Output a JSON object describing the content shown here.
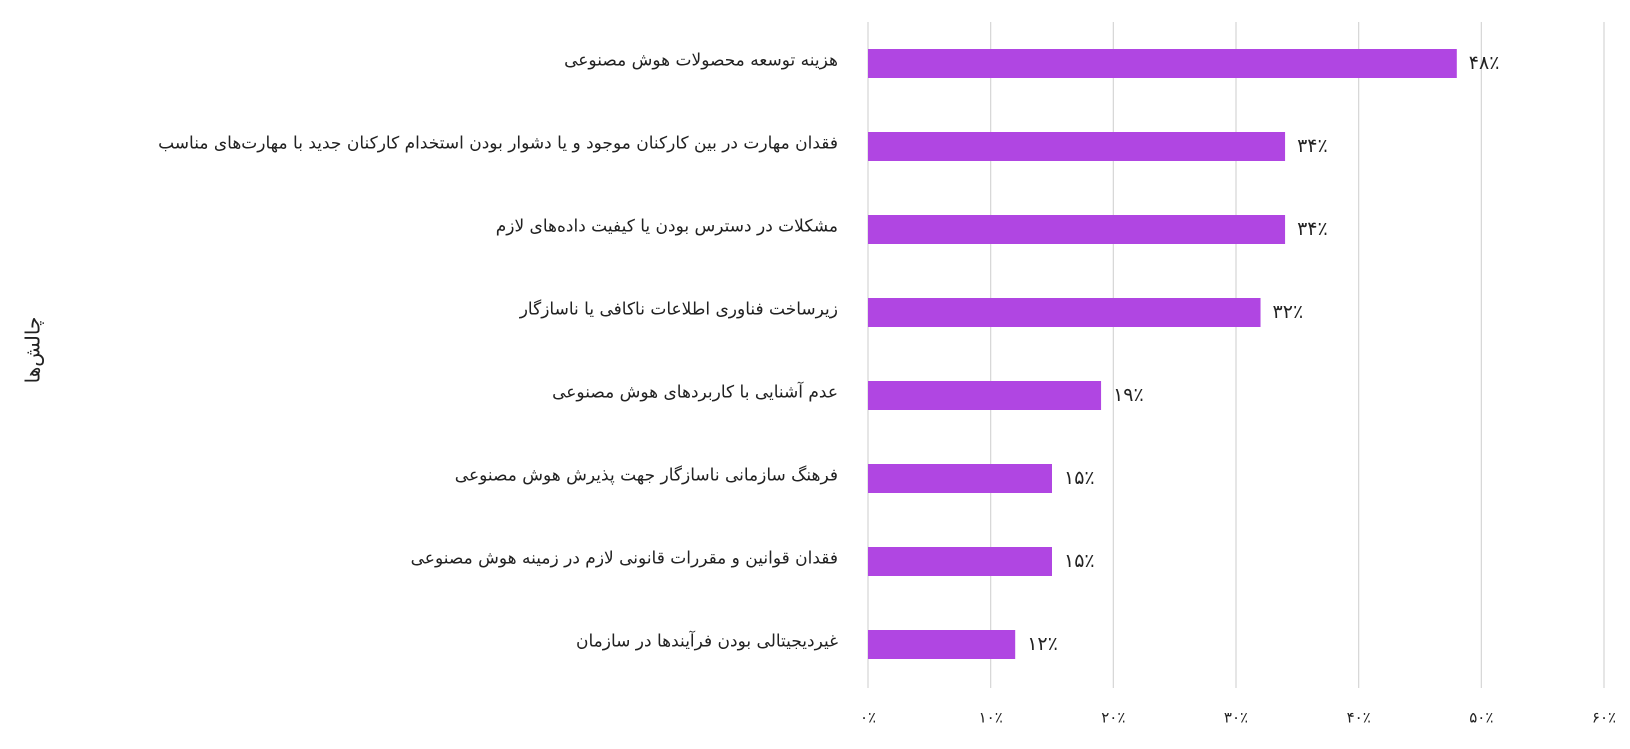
{
  "chart_data": {
    "type": "barh",
    "y_label": "چالش‌ها",
    "categories": [
      "هزینه توسعه محصولات هوش مصنوعی",
      "فقدان مهارت در بین کارکنان موجود و یا دشوار بودن استخدام کارکنان جدید با مهارت‌های مناسب",
      "مشکلات در دسترس بودن یا کیفیت داده‌های لازم",
      "زیرساخت فناوری اطلاعات ناکافی یا ناسازگار",
      "عدم آشنایی با کاربردهای هوش مصنوعی",
      "فرهنگ سازمانی ناسازگار جهت پذیرش هوش مصنوعی",
      "فقدان قوانین و مقررات قانونی لازم در زمینه هوش مصنوعی",
      "غیردیجیتالی بودن فرآیندها در سازمان"
    ],
    "values": [
      48,
      34,
      34,
      32,
      19,
      15,
      15,
      12
    ],
    "value_labels": [
      "۴۸٪",
      "۳۴٪",
      "۳۴٪",
      "۳۲٪",
      "۱۹٪",
      "۱۵٪",
      "۱۵٪",
      "۱۲٪"
    ],
    "color": "#b046e2",
    "xlim": [
      0,
      60
    ],
    "xticks": [
      {
        "value": 0,
        "label": "۰٪"
      },
      {
        "value": 10,
        "label": "۱۰٪"
      },
      {
        "value": 20,
        "label": "۲۰٪"
      },
      {
        "value": 30,
        "label": "۳۰٪"
      },
      {
        "value": 40,
        "label": "۴۰٪"
      },
      {
        "value": 50,
        "label": "۵۰٪"
      },
      {
        "value": 60,
        "label": "۶۰٪"
      }
    ],
    "grid": true
  }
}
